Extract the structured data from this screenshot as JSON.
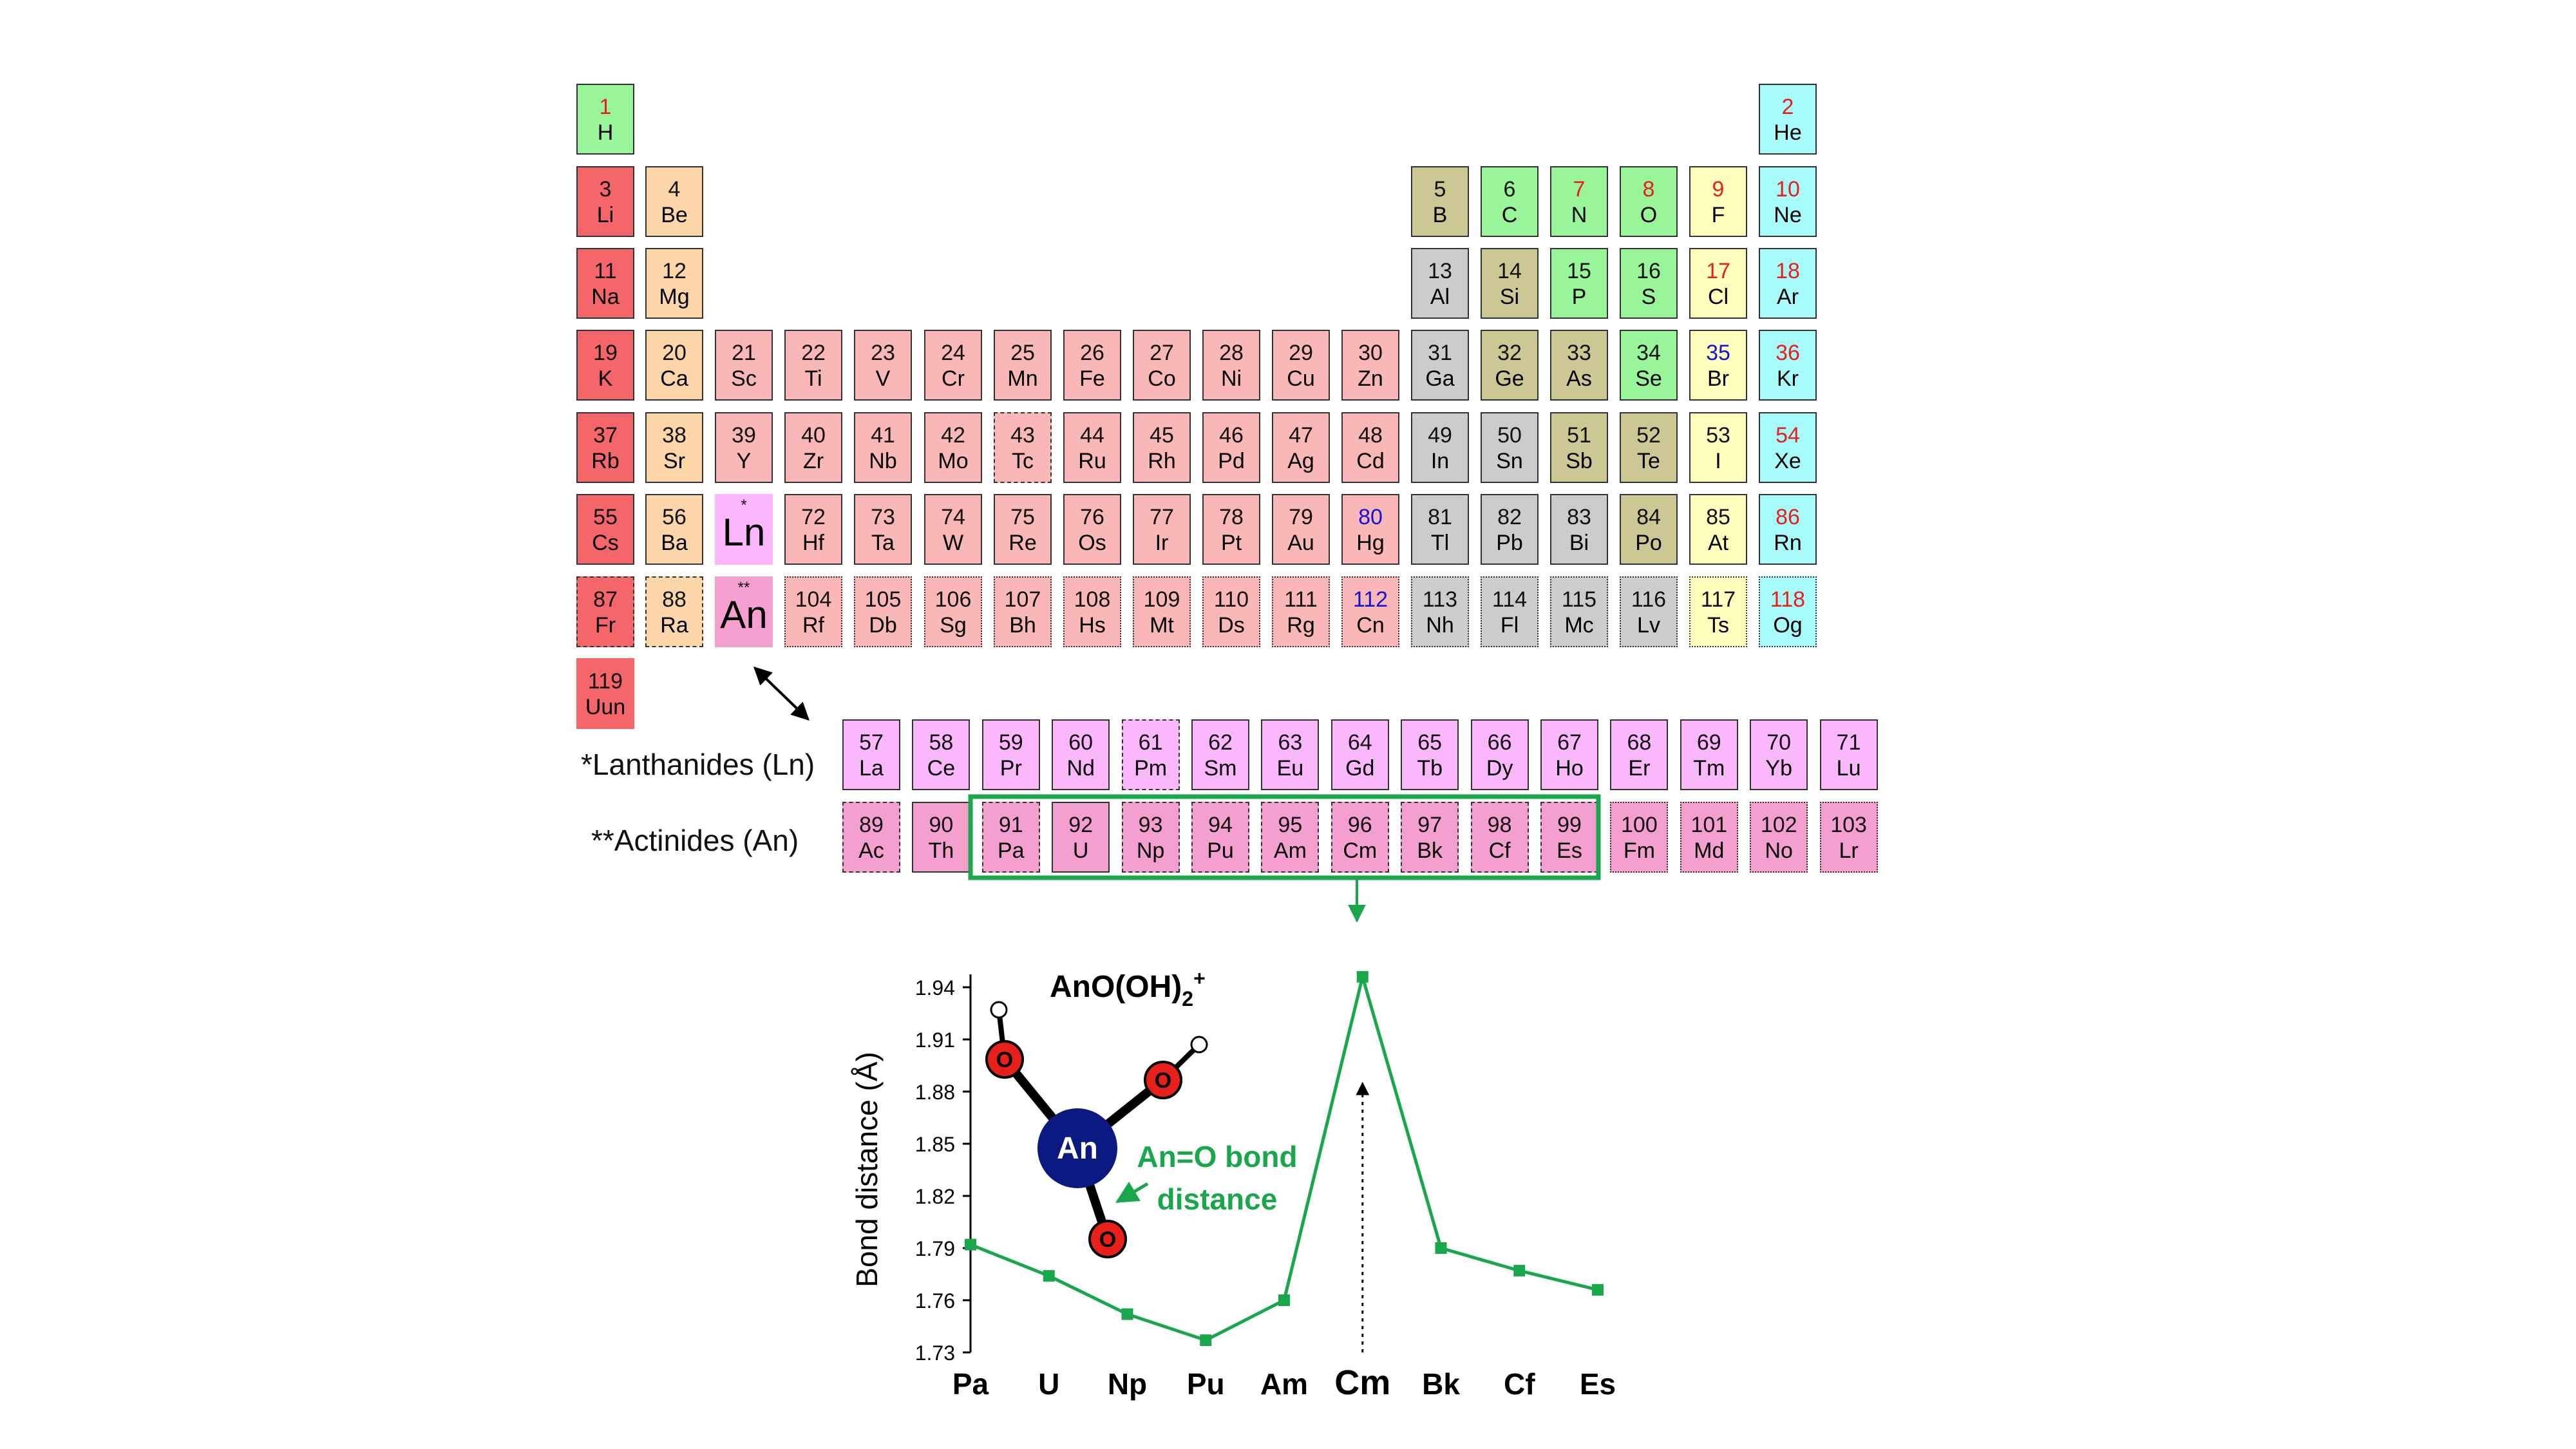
{
  "colors": {
    "alkali": "#f4666a",
    "alkaline_earth": "#fcd5a8",
    "transition": "#f9b7b8",
    "post_transition": "#cccccc",
    "metalloid": "#ccc893",
    "nonmetal": "#99f59a",
    "halogen": "#ffffbd",
    "noble_gas": "#a8fbfb",
    "lanthanide": "#fab7fb",
    "actinide": "#f59fcf",
    "num_gas": "#e8201b",
    "num_liquid": "#1313d5",
    "num_solid": "#111111",
    "highlight": "#1aa64b"
  },
  "periodic_table": {
    "elements": [
      {
        "n": "1",
        "s": "H",
        "c": "nonmetal",
        "nc": "num_gas"
      },
      {
        "n": "2",
        "s": "He",
        "c": "noble_gas",
        "nc": "num_gas"
      },
      {
        "n": "3",
        "s": "Li",
        "c": "alkali"
      },
      {
        "n": "4",
        "s": "Be",
        "c": "alkaline_earth"
      },
      {
        "n": "5",
        "s": "B",
        "c": "metalloid"
      },
      {
        "n": "6",
        "s": "C",
        "c": "nonmetal"
      },
      {
        "n": "7",
        "s": "N",
        "c": "nonmetal",
        "nc": "num_gas"
      },
      {
        "n": "8",
        "s": "O",
        "c": "nonmetal",
        "nc": "num_gas"
      },
      {
        "n": "9",
        "s": "F",
        "c": "halogen",
        "nc": "num_gas"
      },
      {
        "n": "10",
        "s": "Ne",
        "c": "noble_gas",
        "nc": "num_gas"
      },
      {
        "n": "11",
        "s": "Na",
        "c": "alkali"
      },
      {
        "n": "12",
        "s": "Mg",
        "c": "alkaline_earth"
      },
      {
        "n": "13",
        "s": "Al",
        "c": "post_transition"
      },
      {
        "n": "14",
        "s": "Si",
        "c": "metalloid"
      },
      {
        "n": "15",
        "s": "P",
        "c": "nonmetal"
      },
      {
        "n": "16",
        "s": "S",
        "c": "nonmetal"
      },
      {
        "n": "17",
        "s": "Cl",
        "c": "halogen",
        "nc": "num_gas"
      },
      {
        "n": "18",
        "s": "Ar",
        "c": "noble_gas",
        "nc": "num_gas"
      },
      {
        "n": "19",
        "s": "K",
        "c": "alkali"
      },
      {
        "n": "20",
        "s": "Ca",
        "c": "alkaline_earth"
      },
      {
        "n": "21",
        "s": "Sc",
        "c": "transition"
      },
      {
        "n": "22",
        "s": "Ti",
        "c": "transition"
      },
      {
        "n": "23",
        "s": "V",
        "c": "transition"
      },
      {
        "n": "24",
        "s": "Cr",
        "c": "transition"
      },
      {
        "n": "25",
        "s": "Mn",
        "c": "transition"
      },
      {
        "n": "26",
        "s": "Fe",
        "c": "transition"
      },
      {
        "n": "27",
        "s": "Co",
        "c": "transition"
      },
      {
        "n": "28",
        "s": "Ni",
        "c": "transition"
      },
      {
        "n": "29",
        "s": "Cu",
        "c": "transition"
      },
      {
        "n": "30",
        "s": "Zn",
        "c": "transition"
      },
      {
        "n": "31",
        "s": "Ga",
        "c": "post_transition"
      },
      {
        "n": "32",
        "s": "Ge",
        "c": "metalloid"
      },
      {
        "n": "33",
        "s": "As",
        "c": "metalloid"
      },
      {
        "n": "34",
        "s": "Se",
        "c": "nonmetal"
      },
      {
        "n": "35",
        "s": "Br",
        "c": "halogen",
        "nc": "num_liquid"
      },
      {
        "n": "36",
        "s": "Kr",
        "c": "noble_gas",
        "nc": "num_gas"
      },
      {
        "n": "37",
        "s": "Rb",
        "c": "alkali"
      },
      {
        "n": "38",
        "s": "Sr",
        "c": "alkaline_earth"
      },
      {
        "n": "39",
        "s": "Y",
        "c": "transition"
      },
      {
        "n": "40",
        "s": "Zr",
        "c": "transition"
      },
      {
        "n": "41",
        "s": "Nb",
        "c": "transition"
      },
      {
        "n": "42",
        "s": "Mo",
        "c": "transition"
      },
      {
        "n": "43",
        "s": "Tc",
        "c": "transition",
        "b": "dashed"
      },
      {
        "n": "44",
        "s": "Ru",
        "c": "transition"
      },
      {
        "n": "45",
        "s": "Rh",
        "c": "transition"
      },
      {
        "n": "46",
        "s": "Pd",
        "c": "transition"
      },
      {
        "n": "47",
        "s": "Ag",
        "c": "transition"
      },
      {
        "n": "48",
        "s": "Cd",
        "c": "transition"
      },
      {
        "n": "49",
        "s": "In",
        "c": "post_transition"
      },
      {
        "n": "50",
        "s": "Sn",
        "c": "post_transition"
      },
      {
        "n": "51",
        "s": "Sb",
        "c": "metalloid"
      },
      {
        "n": "52",
        "s": "Te",
        "c": "metalloid"
      },
      {
        "n": "53",
        "s": "I",
        "c": "halogen"
      },
      {
        "n": "54",
        "s": "Xe",
        "c": "noble_gas",
        "nc": "num_gas"
      },
      {
        "n": "55",
        "s": "Cs",
        "c": "alkali"
      },
      {
        "n": "56",
        "s": "Ba",
        "c": "alkaline_earth"
      },
      {
        "n": "*",
        "s": "Ln",
        "c": "lanthanide",
        "big": true
      },
      {
        "n": "72",
        "s": "Hf",
        "c": "transition"
      },
      {
        "n": "73",
        "s": "Ta",
        "c": "transition"
      },
      {
        "n": "74",
        "s": "W",
        "c": "transition"
      },
      {
        "n": "75",
        "s": "Re",
        "c": "transition"
      },
      {
        "n": "76",
        "s": "Os",
        "c": "transition"
      },
      {
        "n": "77",
        "s": "Ir",
        "c": "transition"
      },
      {
        "n": "78",
        "s": "Pt",
        "c": "transition"
      },
      {
        "n": "79",
        "s": "Au",
        "c": "transition"
      },
      {
        "n": "80",
        "s": "Hg",
        "c": "transition",
        "nc": "num_liquid"
      },
      {
        "n": "81",
        "s": "Tl",
        "c": "post_transition"
      },
      {
        "n": "82",
        "s": "Pb",
        "c": "post_transition"
      },
      {
        "n": "83",
        "s": "Bi",
        "c": "post_transition"
      },
      {
        "n": "84",
        "s": "Po",
        "c": "metalloid"
      },
      {
        "n": "85",
        "s": "At",
        "c": "halogen"
      },
      {
        "n": "86",
        "s": "Rn",
        "c": "noble_gas",
        "nc": "num_gas"
      },
      {
        "n": "87",
        "s": "Fr",
        "c": "alkali",
        "b": "dashed"
      },
      {
        "n": "88",
        "s": "Ra",
        "c": "alkaline_earth",
        "b": "dashed"
      },
      {
        "n": "**",
        "s": "An",
        "c": "actinide",
        "big": true
      },
      {
        "n": "104",
        "s": "Rf",
        "c": "transition",
        "b": "dotted"
      },
      {
        "n": "105",
        "s": "Db",
        "c": "transition",
        "b": "dotted"
      },
      {
        "n": "106",
        "s": "Sg",
        "c": "transition",
        "b": "dotted"
      },
      {
        "n": "107",
        "s": "Bh",
        "c": "transition",
        "b": "dotted"
      },
      {
        "n": "108",
        "s": "Hs",
        "c": "transition",
        "b": "dotted"
      },
      {
        "n": "109",
        "s": "Mt",
        "c": "transition",
        "b": "dotted"
      },
      {
        "n": "110",
        "s": "Ds",
        "c": "transition",
        "b": "dotted"
      },
      {
        "n": "111",
        "s": "Rg",
        "c": "transition",
        "b": "dotted"
      },
      {
        "n": "112",
        "s": "Cn",
        "c": "transition",
        "b": "dotted",
        "nc": "num_liquid"
      },
      {
        "n": "113",
        "s": "Nh",
        "c": "post_transition",
        "b": "dotted"
      },
      {
        "n": "114",
        "s": "Fl",
        "c": "post_transition",
        "b": "dotted"
      },
      {
        "n": "115",
        "s": "Mc",
        "c": "post_transition",
        "b": "dotted"
      },
      {
        "n": "116",
        "s": "Lv",
        "c": "post_transition",
        "b": "dotted"
      },
      {
        "n": "117",
        "s": "Ts",
        "c": "halogen",
        "b": "dotted"
      },
      {
        "n": "118",
        "s": "Og",
        "c": "noble_gas",
        "b": "dotted",
        "nc": "num_gas"
      },
      {
        "n": "119",
        "s": "Uun",
        "c": "alkali",
        "b": "none"
      }
    ],
    "lanthanides_label": "*Lanthanides (Ln)",
    "actinides_label": "**Actinides (An)",
    "lanthanides": [
      {
        "n": "57",
        "s": "La"
      },
      {
        "n": "58",
        "s": "Ce"
      },
      {
        "n": "59",
        "s": "Pr"
      },
      {
        "n": "60",
        "s": "Nd"
      },
      {
        "n": "61",
        "s": "Pm",
        "b": "dashed"
      },
      {
        "n": "62",
        "s": "Sm"
      },
      {
        "n": "63",
        "s": "Eu"
      },
      {
        "n": "64",
        "s": "Gd"
      },
      {
        "n": "65",
        "s": "Tb"
      },
      {
        "n": "66",
        "s": "Dy"
      },
      {
        "n": "67",
        "s": "Ho"
      },
      {
        "n": "68",
        "s": "Er"
      },
      {
        "n": "69",
        "s": "Tm"
      },
      {
        "n": "70",
        "s": "Yb"
      },
      {
        "n": "71",
        "s": "Lu"
      }
    ],
    "actinides": [
      {
        "n": "89",
        "s": "Ac",
        "b": "dashed"
      },
      {
        "n": "90",
        "s": "Th"
      },
      {
        "n": "91",
        "s": "Pa",
        "b": "dashed"
      },
      {
        "n": "92",
        "s": "U"
      },
      {
        "n": "93",
        "s": "Np",
        "b": "dashed"
      },
      {
        "n": "94",
        "s": "Pu",
        "b": "dashed"
      },
      {
        "n": "95",
        "s": "Am",
        "b": "dashed"
      },
      {
        "n": "96",
        "s": "Cm",
        "b": "dashed"
      },
      {
        "n": "97",
        "s": "Bk",
        "b": "dashed"
      },
      {
        "n": "98",
        "s": "Cf",
        "b": "dashed"
      },
      {
        "n": "99",
        "s": "Es",
        "b": "dashed"
      },
      {
        "n": "100",
        "s": "Fm",
        "b": "dotted"
      },
      {
        "n": "101",
        "s": "Md",
        "b": "dotted"
      },
      {
        "n": "102",
        "s": "No",
        "b": "dotted"
      },
      {
        "n": "103",
        "s": "Lr",
        "b": "dotted"
      }
    ]
  },
  "chart_data": {
    "type": "line",
    "title": "AnO(OH)2+",
    "xlabel": "",
    "ylabel": "Bond distance (Å)",
    "categories": [
      "Pa",
      "U",
      "Np",
      "Pu",
      "Am",
      "Cm",
      "Bk",
      "Cf",
      "Es"
    ],
    "series": [
      {
        "values": [
          1.792,
          1.774,
          1.752,
          1.737,
          1.76,
          1.946,
          1.79,
          1.777,
          1.766
        ],
        "color": "#1aa64b"
      }
    ],
    "ylim": [
      1.73,
      1.94
    ],
    "yticks": [
      "1.73",
      "1.76",
      "1.79",
      "1.82",
      "1.85",
      "1.88",
      "1.91",
      "1.94"
    ],
    "grid": false,
    "annotation": "An=O bond distance",
    "molecule_labels": {
      "metal": "An",
      "oxygen": "O"
    }
  }
}
